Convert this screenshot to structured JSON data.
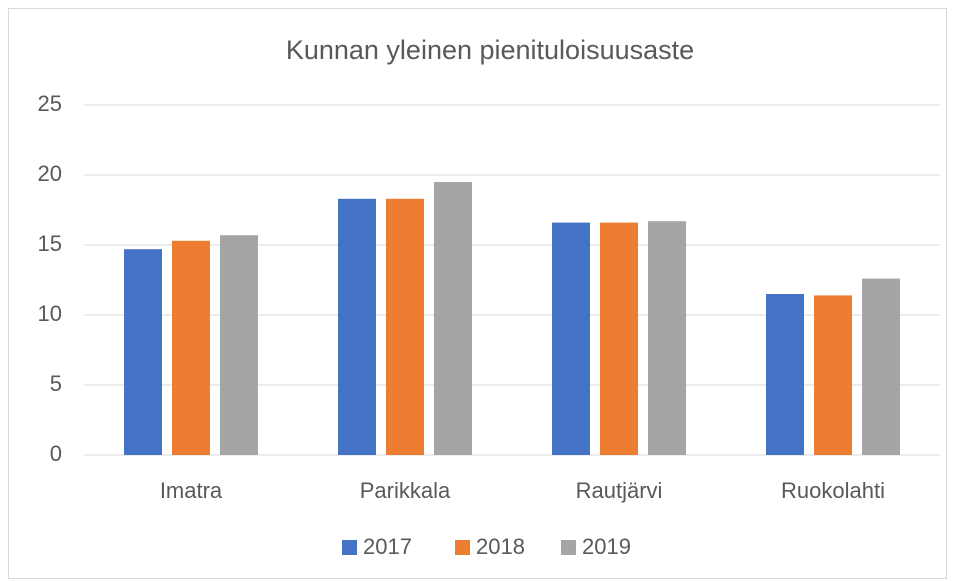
{
  "chart_data": {
    "type": "bar",
    "title": "Kunnan yleinen pienituloisuusaste",
    "categories": [
      "Imatra",
      "Parikkala",
      "Rautjärvi",
      "Ruokolahti"
    ],
    "series": [
      {
        "name": "2017",
        "color": "#4472c4",
        "values": [
          14.7,
          18.3,
          16.6,
          11.5
        ]
      },
      {
        "name": "2018",
        "color": "#ed7d31",
        "values": [
          15.3,
          18.3,
          16.6,
          11.4
        ]
      },
      {
        "name": "2019",
        "color": "#a5a5a5",
        "values": [
          15.7,
          19.5,
          16.7,
          12.6
        ]
      }
    ],
    "ylim": [
      0,
      25
    ],
    "yticks": [
      0,
      5,
      10,
      15,
      20,
      25
    ],
    "grid": true,
    "legend": "bottom"
  }
}
